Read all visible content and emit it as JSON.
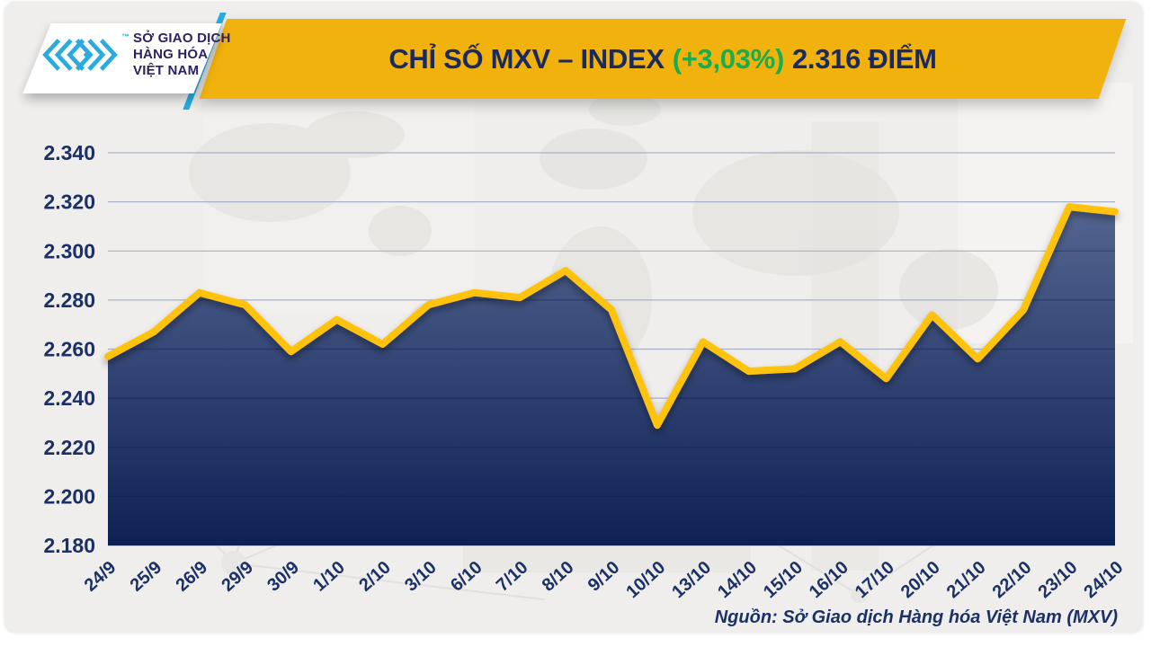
{
  "header": {
    "title_main": "CHỈ SỐ MXV – INDEX",
    "title_change": "(+3,03%)",
    "title_value": "2.316 ĐIỂM"
  },
  "logo": {
    "line1": "SỞ GIAO DỊCH",
    "line2": "HÀNG HÓA",
    "line3": "VIỆT NAM",
    "tm": "™"
  },
  "footer": {
    "source": "Nguồn: Sở Giao dịch Hàng hóa Việt Nam (MXV)"
  },
  "colors": {
    "banner": "#f2b20e",
    "navy": "#1b2a5e",
    "green": "#17ae4f",
    "cyan": "#29abe2",
    "line": "#ffc20e",
    "area_top": "#53658f",
    "area_bottom": "#0e2156",
    "grid_light": "#a8b1c6",
    "axis_label": "#1b3166"
  },
  "chart_data": {
    "type": "area",
    "title": "CHỈ SỐ MXV – INDEX (+3,03%) 2.316 ĐIỂM",
    "xlabel": "",
    "ylabel": "",
    "legend": "none",
    "grid": true,
    "categories": [
      "24/9",
      "25/9",
      "26/9",
      "29/9",
      "30/9",
      "1/10",
      "2/10",
      "3/10",
      "6/10",
      "7/10",
      "8/10",
      "9/10",
      "10/10",
      "13/10",
      "14/10",
      "15/10",
      "16/10",
      "17/10",
      "20/10",
      "21/10",
      "22/10",
      "23/10",
      "24/10"
    ],
    "values": [
      2257,
      2267,
      2283,
      2278,
      2259,
      2272,
      2262,
      2278,
      2283,
      2281,
      2292,
      2276,
      2229,
      2263,
      2251,
      2252,
      2263,
      2248,
      2274,
      2256,
      2276,
      2318,
      2316
    ],
    "ylim": [
      2180,
      2340
    ],
    "ytick_step": 20,
    "ytick_labels": [
      "2.340",
      "2.320",
      "2.300",
      "2.280",
      "2.260",
      "2.240",
      "2.220",
      "2.200",
      "2.180"
    ],
    "last_value_label": "2.316",
    "change_label": "+3,03%"
  }
}
